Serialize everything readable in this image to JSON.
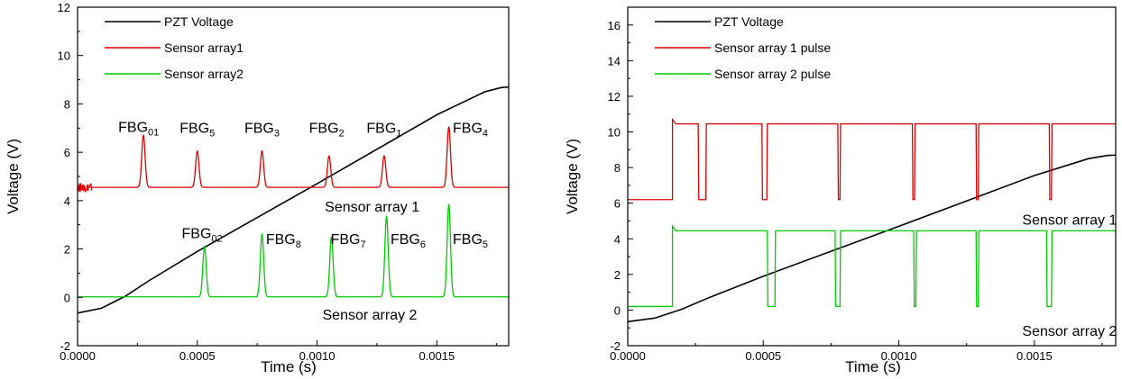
{
  "chart_data": [
    {
      "type": "line",
      "xlabel": "Time (s)",
      "ylabel": "Voltage (V)",
      "xlim": [
        0,
        0.0018
      ],
      "ylim": [
        -2,
        12
      ],
      "x_ticks": [
        "0.0000",
        "0.0005",
        "0.0010",
        "0.0015"
      ],
      "y_ticks": [
        "-2",
        "0",
        "2",
        "4",
        "6",
        "8",
        "10",
        "12"
      ],
      "legend_position": "top-left",
      "series": [
        {
          "name": "PZT Voltage",
          "color": "#000000",
          "shape": "ramp",
          "points": [
            [
              0,
              -0.65
            ],
            [
              0.0001,
              -0.45
            ],
            [
              0.0002,
              0.05
            ],
            [
              0.0003,
              0.7
            ],
            [
              0.0005,
              1.9
            ],
            [
              0.001,
              4.7
            ],
            [
              0.0015,
              7.55
            ],
            [
              0.0017,
              8.5
            ],
            [
              0.00177,
              8.68
            ],
            [
              0.0018,
              8.7
            ]
          ]
        },
        {
          "name": "Sensor array1",
          "color": "#dd0000",
          "shape": "peaks",
          "baseline": 4.55,
          "width": 7e-06,
          "noise_until": 6e-05,
          "peaks": [
            [
              0.000275,
              6.7
            ],
            [
              0.0005,
              6.05
            ],
            [
              0.00077,
              6.05
            ],
            [
              0.00105,
              5.85
            ],
            [
              0.00128,
              5.85
            ],
            [
              0.00155,
              7.05
            ]
          ]
        },
        {
          "name": "Sensor array2",
          "color": "#00cc00",
          "shape": "peaks",
          "baseline": 0.02,
          "width": 7e-06,
          "peaks": [
            [
              0.00053,
              2.1
            ],
            [
              0.00077,
              2.6
            ],
            [
              0.00106,
              2.5
            ],
            [
              0.00129,
              3.35
            ],
            [
              0.00155,
              3.85
            ]
          ]
        }
      ],
      "annotations": [
        {
          "text": "FBG",
          "sub": "01",
          "x": 0.000255,
          "y": 6.85
        },
        {
          "text": "FBG",
          "sub": "5",
          "x": 0.0005,
          "y": 6.8
        },
        {
          "text": "FBG",
          "sub": "3",
          "x": 0.00077,
          "y": 6.8
        },
        {
          "text": "FBG",
          "sub": "2",
          "x": 0.00104,
          "y": 6.8
        },
        {
          "text": "FBG",
          "sub": "1",
          "x": 0.00128,
          "y": 6.8
        },
        {
          "text": "FBG",
          "sub": "4",
          "x": 0.00164,
          "y": 6.8
        },
        {
          "text": "Sensor array 1",
          "sub": "",
          "x": 0.00123,
          "y": 3.55
        },
        {
          "text": "FBG",
          "sub": "02",
          "x": 0.00052,
          "y": 2.45
        },
        {
          "text": "FBG",
          "sub": "8",
          "x": 0.00086,
          "y": 2.2
        },
        {
          "text": "FBG",
          "sub": "7",
          "x": 0.00113,
          "y": 2.2
        },
        {
          "text": "FBG",
          "sub": "6",
          "x": 0.00138,
          "y": 2.2
        },
        {
          "text": "FBG",
          "sub": "5",
          "x": 0.00164,
          "y": 2.2
        },
        {
          "text": "Sensor array 2",
          "sub": "",
          "x": 0.00122,
          "y": -0.92
        }
      ]
    },
    {
      "type": "line",
      "xlabel": "Time (s)",
      "ylabel": "Voltage (V)",
      "xlim": [
        0,
        0.0018
      ],
      "ylim": [
        -2,
        17
      ],
      "x_ticks": [
        "0.0000",
        "0.0005",
        "0.0010",
        "0.0015"
      ],
      "y_ticks": [
        "-2",
        "0",
        "2",
        "4",
        "6",
        "8",
        "10",
        "12",
        "14",
        "16"
      ],
      "legend_position": "top-left",
      "series": [
        {
          "name": "PZT Voltage",
          "color": "#000000",
          "shape": "ramp",
          "points": [
            [
              0,
              -0.65
            ],
            [
              0.0001,
              -0.45
            ],
            [
              0.0002,
              0.05
            ],
            [
              0.0003,
              0.7
            ],
            [
              0.0005,
              1.9
            ],
            [
              0.001,
              4.7
            ],
            [
              0.0015,
              7.55
            ],
            [
              0.0017,
              8.5
            ],
            [
              0.00177,
              8.68
            ],
            [
              0.0018,
              8.7
            ]
          ]
        },
        {
          "name": "Sensor array 1 pulse",
          "color": "#dd0000",
          "shape": "pulse",
          "low": 6.2,
          "high": 10.45,
          "overshoot": 10.7,
          "start": 0.000165,
          "dips": [
            [
              0.00026,
              0.00029
            ],
            [
              0.000495,
              0.000515
            ],
            [
              0.000775,
              0.000785
            ],
            [
              0.00105,
              0.00106
            ],
            [
              0.001285,
              0.001295
            ],
            [
              0.001555,
              0.001565
            ]
          ]
        },
        {
          "name": "Sensor array 2 pulse",
          "color": "#00cc00",
          "shape": "pulse",
          "low": 0.2,
          "high": 4.45,
          "overshoot": 4.7,
          "start": 0.000165,
          "dips": [
            [
              0.000515,
              0.000545
            ],
            [
              0.000765,
              0.000785
            ],
            [
              0.001055,
              0.001065
            ],
            [
              0.001285,
              0.001295
            ],
            [
              0.001545,
              0.001565
            ]
          ]
        }
      ],
      "annotations": [
        {
          "text": "Sensor array 1",
          "sub": "",
          "x": 0.00163,
          "y": 4.8
        },
        {
          "text": "Sensor array 2",
          "sub": "",
          "x": 0.00163,
          "y": -1.45
        }
      ]
    }
  ]
}
